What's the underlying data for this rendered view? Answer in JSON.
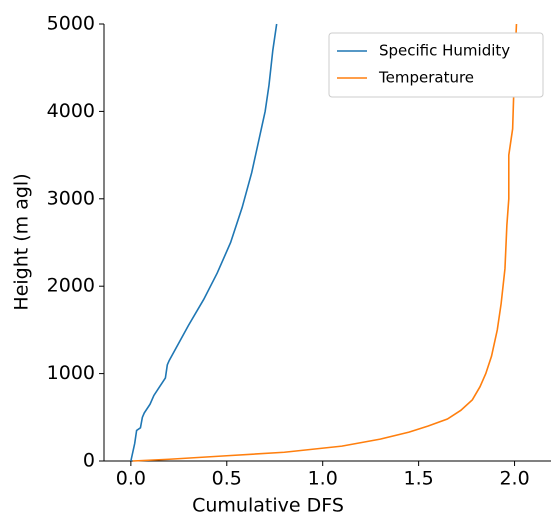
{
  "chart_data": {
    "type": "line",
    "xlabel": "Cumulative DFS",
    "ylabel": "Height (m agl)",
    "xlim": [
      -0.14,
      2.19
    ],
    "ylim": [
      0,
      5000
    ],
    "xticks": [
      {
        "value": 0,
        "label": "0.0"
      },
      {
        "value": 0.5,
        "label": "0.5"
      },
      {
        "value": 1,
        "label": "1.0"
      },
      {
        "value": 1.5,
        "label": "1.5"
      },
      {
        "value": 2,
        "label": "2.0"
      }
    ],
    "yticks": [
      0,
      1000,
      2000,
      3000,
      4000,
      5000
    ],
    "legend": "upper right",
    "series": [
      {
        "name": "Specific Humidity",
        "color": "#1f77b4",
        "x": [
          0,
          0.02,
          0.03,
          0.05,
          0.06,
          0.07,
          0.1,
          0.12,
          0.15,
          0.18,
          0.19,
          0.2,
          0.25,
          0.3,
          0.38,
          0.45,
          0.52,
          0.58,
          0.63,
          0.67,
          0.7,
          0.72,
          0.74,
          0.76
        ],
        "values": [
          0,
          200,
          350,
          380,
          500,
          550,
          650,
          750,
          850,
          950,
          1100,
          1150,
          1350,
          1550,
          1850,
          2150,
          2500,
          2900,
          3300,
          3700,
          4000,
          4300,
          4700,
          5000
        ]
      },
      {
        "name": "Temperature",
        "color": "#ff7f0e",
        "x": [
          0.01,
          0.2,
          0.5,
          0.8,
          1.1,
          1.3,
          1.45,
          1.55,
          1.65,
          1.72,
          1.78,
          1.82,
          1.85,
          1.88,
          1.91,
          1.93,
          1.95,
          1.96,
          1.97,
          1.97,
          1.99,
          2.0,
          2.01
        ],
        "values": [
          0,
          20,
          60,
          100,
          170,
          250,
          330,
          400,
          480,
          580,
          700,
          850,
          1000,
          1200,
          1500,
          1800,
          2200,
          2700,
          3000,
          3500,
          3800,
          4500,
          5000
        ]
      }
    ]
  }
}
